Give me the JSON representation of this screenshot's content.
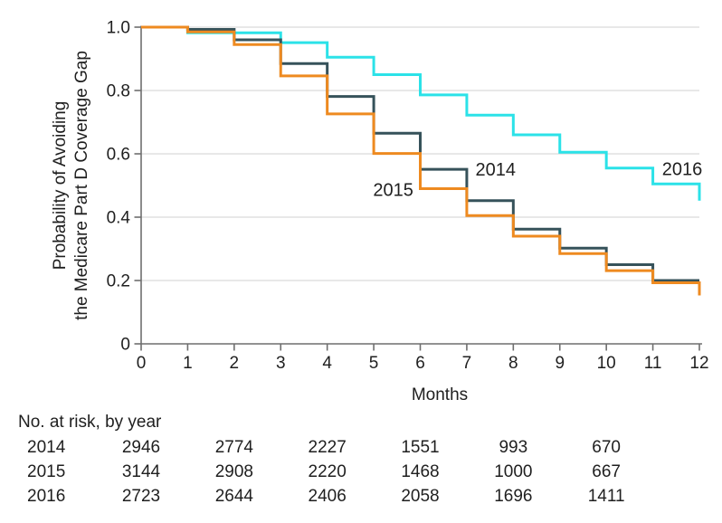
{
  "chart_data": {
    "type": "line",
    "subtype": "kaplan-meier-step",
    "xlabel": "Months",
    "ylabel_lines": [
      "Probability of Avoiding",
      "the Medicare Part D Coverage Gap"
    ],
    "xlim": [
      0,
      12
    ],
    "ylim": [
      0,
      1.0
    ],
    "x_ticks": [
      "0",
      "1",
      "2",
      "3",
      "4",
      "5",
      "6",
      "7",
      "8",
      "9",
      "10",
      "11",
      "12"
    ],
    "y_ticks": [
      {
        "value": 0,
        "label": "0"
      },
      {
        "value": 0.2,
        "label": "0.2"
      },
      {
        "value": 0.4,
        "label": "0.4"
      },
      {
        "value": 0.6,
        "label": "0.6"
      },
      {
        "value": 0.8,
        "label": "0.8"
      },
      {
        "value": 1.0,
        "label": "1.0"
      }
    ],
    "grid": "horizontal-light-gray",
    "legend": "inline-annotations",
    "step_note": "values[i] = probability on month interval [i, i+1); values[12] = value after final drop at month 12",
    "series": [
      {
        "name": "2016",
        "color": "#2BE2E8",
        "values": [
          1.0,
          0.982,
          0.982,
          0.951,
          0.905,
          0.85,
          0.786,
          0.722,
          0.66,
          0.605,
          0.555,
          0.505,
          0.452
        ]
      },
      {
        "name": "2014",
        "color": "#36525A",
        "values": [
          1.0,
          0.993,
          0.96,
          0.885,
          0.781,
          0.665,
          0.551,
          0.452,
          0.362,
          0.302,
          0.25,
          0.2,
          0.2
        ]
      },
      {
        "name": "2015",
        "color": "#EE8A20",
        "values": [
          1.0,
          0.985,
          0.945,
          0.846,
          0.726,
          0.601,
          0.49,
          0.405,
          0.34,
          0.285,
          0.231,
          0.193,
          0.153
        ]
      }
    ],
    "annotations": [
      {
        "text": "2015",
        "x": 5.42,
        "y": 0.487
      },
      {
        "text": "2014",
        "x": 7.62,
        "y": 0.552
      },
      {
        "text": "2016",
        "x": 11.63,
        "y": 0.553
      }
    ]
  },
  "risk_table": {
    "title": "No. at risk, by year",
    "months": [
      0,
      2,
      4,
      6,
      8,
      10
    ],
    "rows": [
      {
        "year": "2014",
        "values": [
          "2946",
          "2774",
          "2227",
          "1551",
          "993",
          "670"
        ]
      },
      {
        "year": "2015",
        "values": [
          "3144",
          "2908",
          "2220",
          "1468",
          "1000",
          "667"
        ]
      },
      {
        "year": "2016",
        "values": [
          "2723",
          "2644",
          "2406",
          "2058",
          "1696",
          "1411"
        ]
      }
    ]
  },
  "colors": {
    "series_2014": "#36525A",
    "series_2015": "#EE8A20",
    "series_2016": "#2BE2E8",
    "gridline": "#D9D9D9",
    "axis": "#6E6E6E",
    "text": "#1F1F1F"
  }
}
